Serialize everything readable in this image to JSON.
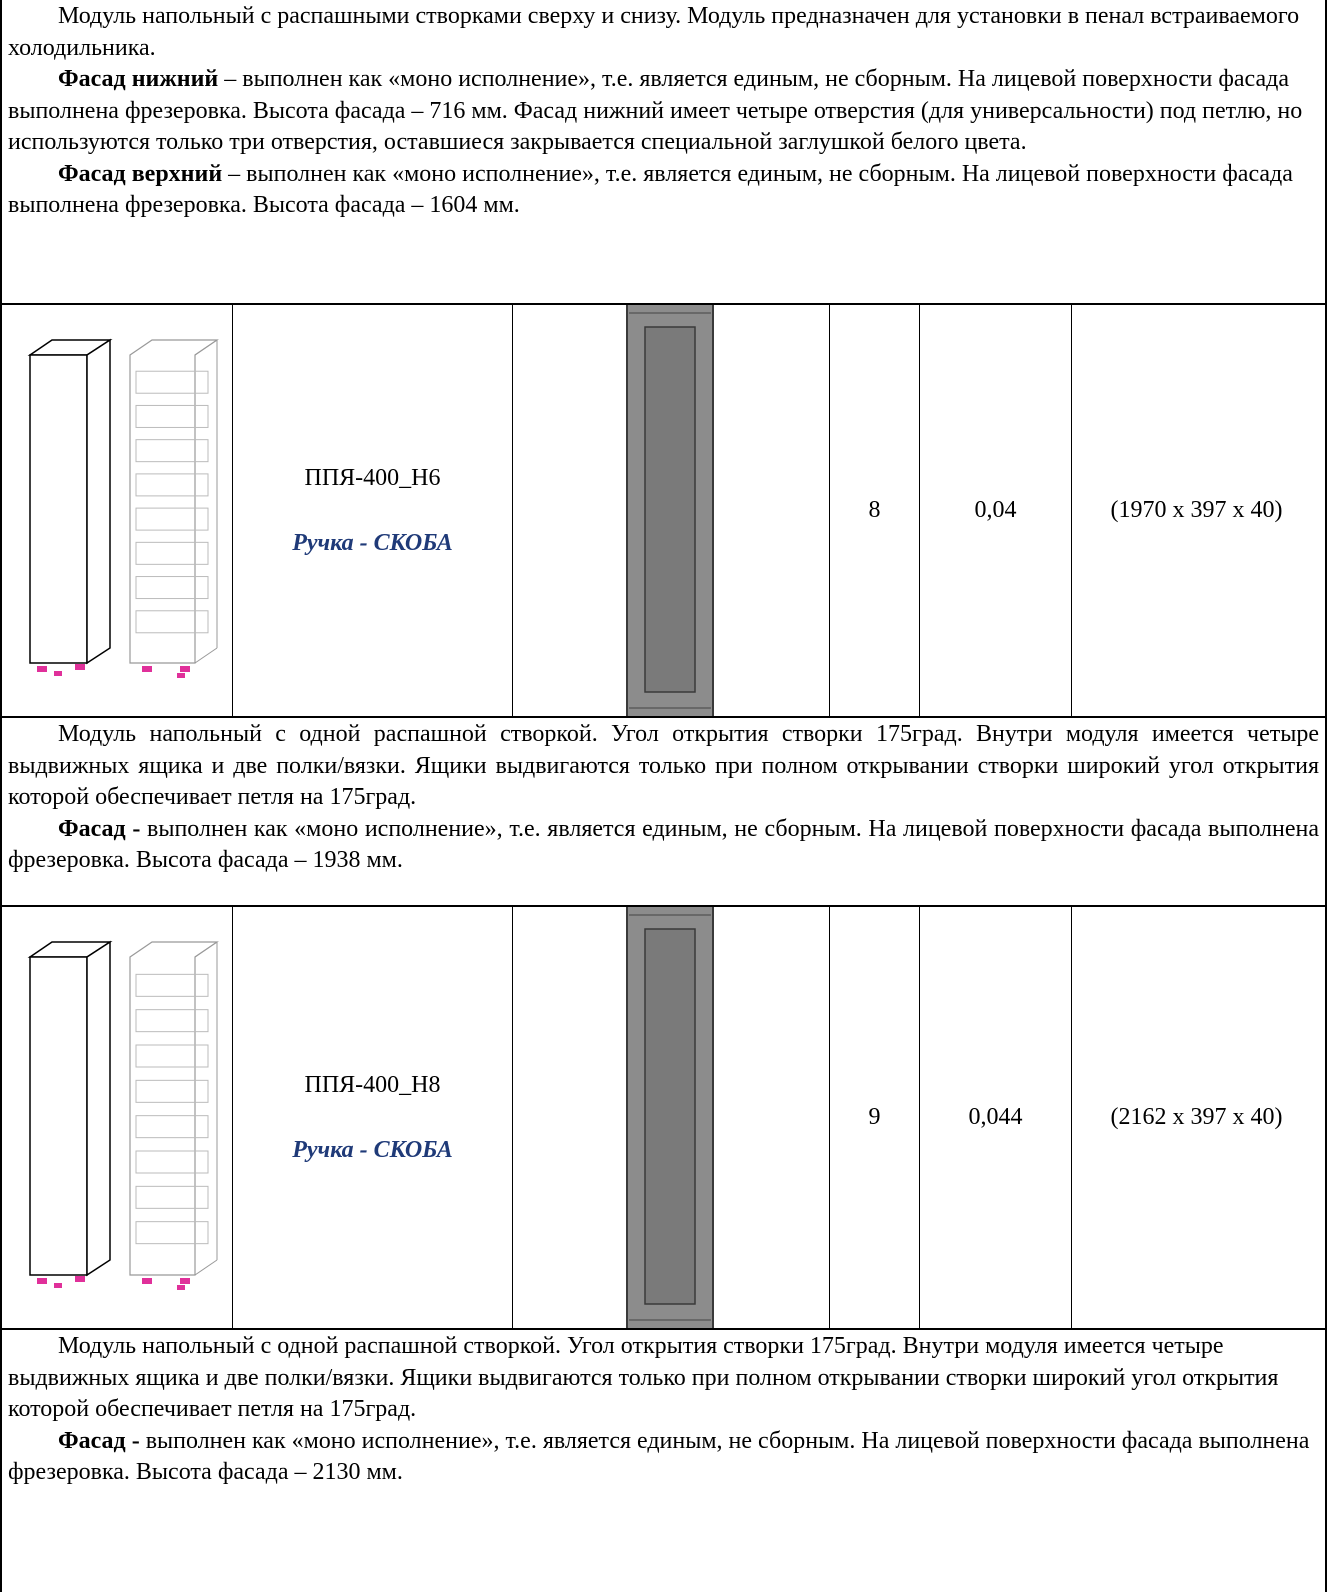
{
  "sections": [
    {
      "paragraphs": [
        {
          "text": "Модуль напольный с распашными створками сверху и снизу. Модуль предназначен для установки в пенал встраиваемого холодильника."
        },
        {
          "lead": "Фасад нижний",
          "text": "– выполнен как «моно исполнение», т.е. является единым, не сборным. На лицевой поверхности фасада выполнена фрезеровка. Высота фасада – 716 мм. Фасад нижний имеет четыре отверстия (для универсальности) под петлю, но используются только три отверстия, оставшиеся закрывается специальной заглушкой белого цвета."
        },
        {
          "lead": "Фасад верхний",
          "text": "– выполнен как «моно исполнение», т.е. является единым, не сборным. На лицевой поверхности фасада выполнена фрезеровка. Высота фасада – 1604 мм."
        }
      ]
    },
    {
      "article": "ППЯ-400_Н6",
      "handle": "Ручка - СКОБА",
      "quantity": 8,
      "volume": "0,04",
      "dimensions": "(1970 x 397 x 40)"
    },
    {
      "paragraphs": [
        {
          "text": "Модуль напольный с одной распашной створкой. Угол открытия створки 175град. Внутри модуля имеется четыре выдвижных ящика и  две полки/вязки. Ящики выдвигаются только при полном открывании створки широкий угол открытия которой обеспечивает петля на 175град."
        },
        {
          "lead": "Фасад -",
          "text": "выполнен как «моно исполнение», т.е. является единым, не сборным. На лицевой поверхности фасада выполнена фрезеровка. Высота фасада – 1938 мм."
        }
      ]
    },
    {
      "article": "ППЯ-400_Н8",
      "handle": "Ручка - СКОБА",
      "quantity": 9,
      "volume": "0,044",
      "dimensions": "(2162 x 397 x 40)"
    },
    {
      "paragraphs": [
        {
          "text": "Модуль напольный с одной распашной створкой. Угол открытия створки 175град. Внутри модуля имеется четыре выдвижных ящика и  две полки/вязки. Ящики выдвигаются только при полном открывании створки широкий угол открытия которой обеспечивает петля на 175град."
        },
        {
          "lead": "Фасад -",
          "text": "выполнен как «моно исполнение», т.е. является единым, не сборным. На лицевой поверхности фасада выполнена фрезеровка. Высота фасада – 2130 мм."
        }
      ]
    }
  ]
}
